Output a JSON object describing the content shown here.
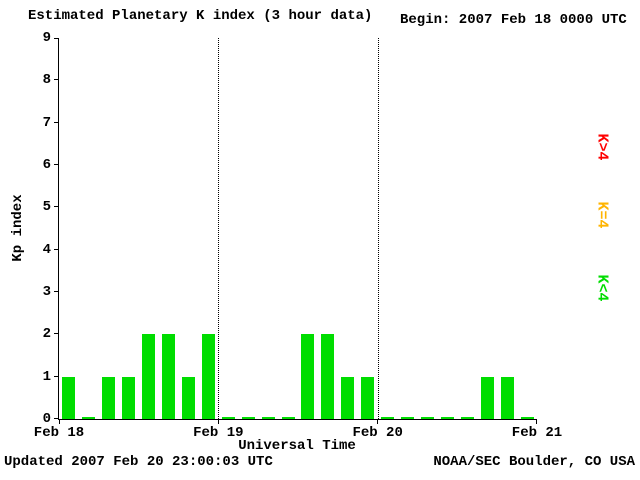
{
  "title": "Estimated Planetary K index (3 hour data)",
  "begin_label": "Begin: 2007 Feb 18 0000 UTC",
  "footer": {
    "updated": "Updated 2007 Feb 20 23:00:03 UTC",
    "source": "NOAA/SEC Boulder, CO USA"
  },
  "colors": {
    "bar_low": "#00dd00",
    "bar_mid": "#ffb400",
    "bar_high": "#ff0000",
    "axis": "#000000",
    "background": "#ffffff"
  },
  "legend": [
    {
      "label": "K>4",
      "color": "#ff0000"
    },
    {
      "label": "K=4",
      "color": "#ffb400"
    },
    {
      "label": "K<4",
      "color": "#00dd00"
    }
  ],
  "chart_data": {
    "type": "bar",
    "title": "Estimated Planetary K index (3 hour data)",
    "xlabel": "Universal Time",
    "ylabel": "Kp index",
    "ylim": [
      0,
      9
    ],
    "yticks": [
      0,
      1,
      2,
      3,
      4,
      5,
      6,
      7,
      8,
      9
    ],
    "x_tick_labels": [
      "Feb 18",
      "Feb 19",
      "Feb 20",
      "Feb 21"
    ],
    "bars_per_day": 8,
    "hours_per_bar": 3,
    "grid": "dotted vertical lines at day boundaries",
    "legend_position": "right, rotated",
    "days": [
      {
        "date": "2007 Feb 18",
        "kp": [
          1,
          0,
          1,
          1,
          2,
          2,
          1,
          2
        ]
      },
      {
        "date": "2007 Feb 19",
        "kp": [
          0,
          0,
          0,
          0,
          2,
          2,
          1,
          1
        ]
      },
      {
        "date": "2007 Feb 20",
        "kp": [
          0,
          0,
          0,
          0,
          0,
          1,
          1,
          0
        ]
      }
    ],
    "values": [
      1,
      0,
      1,
      1,
      2,
      2,
      1,
      2,
      0,
      0,
      0,
      0,
      2,
      2,
      1,
      1,
      0,
      0,
      0,
      0,
      0,
      1,
      1,
      0
    ],
    "color_rule": "green if K<4, yellow if K=4, red if K>4"
  }
}
